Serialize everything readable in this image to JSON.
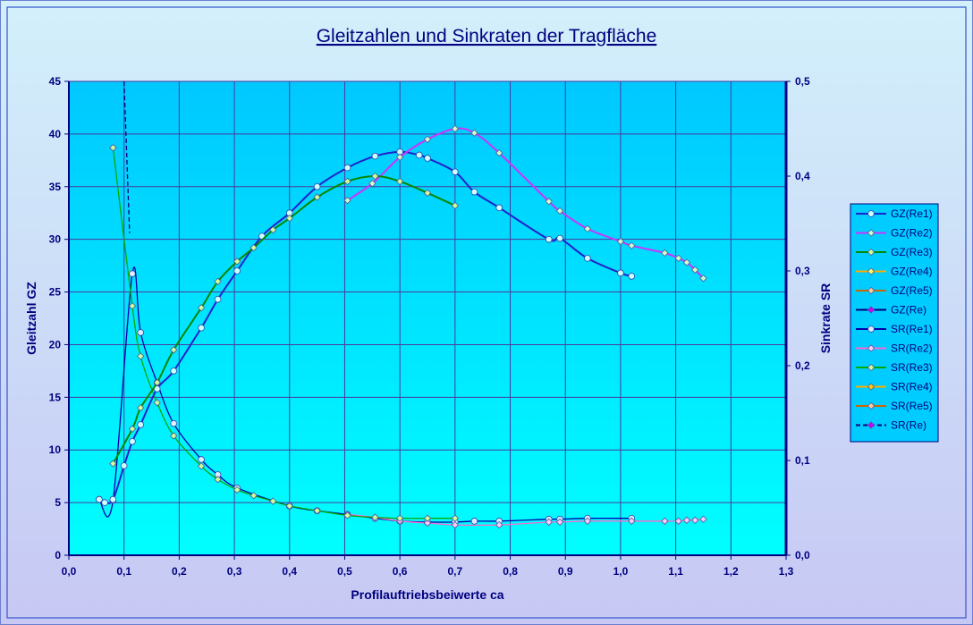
{
  "chart_data": {
    "type": "line",
    "title": "Gleitzahlen und Sinkraten der Tragfläche",
    "xlabel": "Profilauftriebsbeiwerte ca",
    "ylabel": "Gleitzahl GZ",
    "y2label": "Sinkrate SR",
    "xlim": [
      0,
      1.3
    ],
    "ylim": [
      0,
      45
    ],
    "y2lim": [
      0,
      0.5
    ],
    "x_ticks": [
      "0,0",
      "0,1",
      "0,2",
      "0,3",
      "0,4",
      "0,5",
      "0,6",
      "0,7",
      "0,8",
      "0,9",
      "1,0",
      "1,1",
      "1,2",
      "1,3"
    ],
    "y_ticks": [
      "0",
      "5",
      "10",
      "15",
      "20",
      "25",
      "30",
      "35",
      "40",
      "45"
    ],
    "y2_ticks": [
      "0,0",
      "0,1",
      "0,2",
      "0,3",
      "0,4",
      "0,5"
    ],
    "grid": true,
    "legend_position": "right",
    "colors": {
      "background_outer_top": "#d2f0fb",
      "background_outer_bottom": "#c7c8f4",
      "plot_top": "#00ccff",
      "plot_bottom": "#00ffff",
      "axis": "#000080",
      "title": "#000080"
    },
    "series": [
      {
        "name": "GZ(Re1)",
        "axis": "left",
        "color": "#2222cc",
        "marker_fill": "#ccffff",
        "points": [
          [
            0.055,
            5.3
          ],
          [
            0.065,
            5.0
          ],
          [
            0.08,
            5.3
          ],
          [
            0.1,
            8.5
          ],
          [
            0.115,
            10.8
          ],
          [
            0.13,
            12.4
          ],
          [
            0.16,
            15.8
          ],
          [
            0.19,
            17.5
          ],
          [
            0.24,
            21.6
          ],
          [
            0.27,
            24.3
          ],
          [
            0.305,
            27.0
          ],
          [
            0.35,
            30.3
          ],
          [
            0.4,
            32.5
          ],
          [
            0.45,
            35.0
          ],
          [
            0.505,
            36.8
          ],
          [
            0.555,
            37.9
          ],
          [
            0.6,
            38.3
          ],
          [
            0.635,
            38.0
          ],
          [
            0.65,
            37.7
          ],
          [
            0.7,
            36.4
          ],
          [
            0.735,
            34.5
          ],
          [
            0.78,
            33.0
          ],
          [
            0.87,
            30.0
          ],
          [
            0.89,
            30.1
          ],
          [
            0.94,
            28.2
          ],
          [
            1.0,
            26.8
          ],
          [
            1.02,
            26.5
          ]
        ]
      },
      {
        "name": "GZ(Re2)",
        "axis": "left",
        "color": "#cc33ff",
        "marker_fill": "#ccffcc",
        "points": [
          [
            0.505,
            33.7
          ],
          [
            0.55,
            35.3
          ],
          [
            0.6,
            37.8
          ],
          [
            0.65,
            39.5
          ],
          [
            0.7,
            40.5
          ],
          [
            0.735,
            40.1
          ],
          [
            0.78,
            38.2
          ],
          [
            0.87,
            33.6
          ],
          [
            0.89,
            32.7
          ],
          [
            0.94,
            31.0
          ],
          [
            1.0,
            29.8
          ],
          [
            1.02,
            29.4
          ],
          [
            1.08,
            28.7
          ],
          [
            1.105,
            28.2
          ],
          [
            1.12,
            27.8
          ],
          [
            1.135,
            27.1
          ],
          [
            1.15,
            26.3
          ]
        ]
      },
      {
        "name": "GZ(Re3)",
        "axis": "left",
        "color": "#008800",
        "marker_fill": "#ccff99",
        "points": [
          [
            0.08,
            8.7
          ],
          [
            0.115,
            12.0
          ],
          [
            0.13,
            14.0
          ],
          [
            0.16,
            16.4
          ],
          [
            0.19,
            19.5
          ],
          [
            0.24,
            23.5
          ],
          [
            0.27,
            26.0
          ],
          [
            0.305,
            27.9
          ],
          [
            0.335,
            29.2
          ],
          [
            0.37,
            30.9
          ],
          [
            0.4,
            32.0
          ],
          [
            0.45,
            34.0
          ],
          [
            0.505,
            35.5
          ],
          [
            0.555,
            36.0
          ],
          [
            0.6,
            35.5
          ],
          [
            0.65,
            34.4
          ],
          [
            0.7,
            33.2
          ]
        ]
      },
      {
        "name": "GZ(Re4)",
        "axis": "left",
        "color": "#ffaa00",
        "marker_fill": "#ffff66",
        "points": []
      },
      {
        "name": "GZ(Re5)",
        "axis": "left",
        "color": "#cc6600",
        "marker_fill": "#ffcc99",
        "points": []
      },
      {
        "name": "GZ(Re)",
        "axis": "left",
        "color": "#000080",
        "marker_fill": "#cc00ff",
        "points": []
      },
      {
        "name": "SR(Re1)",
        "axis": "right",
        "color": "#0000aa",
        "marker_fill": "#ddeeff",
        "points": [
          [
            0.055,
            0.059
          ],
          [
            0.08,
            0.058
          ],
          [
            0.115,
            0.297
          ],
          [
            0.13,
            0.235
          ],
          [
            0.16,
            0.182
          ],
          [
            0.19,
            0.139
          ],
          [
            0.24,
            0.101
          ],
          [
            0.27,
            0.085
          ],
          [
            0.305,
            0.071
          ],
          [
            0.4,
            0.052
          ],
          [
            0.45,
            0.047
          ],
          [
            0.505,
            0.043
          ],
          [
            0.555,
            0.039
          ],
          [
            0.6,
            0.036
          ],
          [
            0.65,
            0.035
          ],
          [
            0.7,
            0.035
          ],
          [
            0.735,
            0.036
          ],
          [
            0.78,
            0.036
          ],
          [
            0.87,
            0.038
          ],
          [
            0.89,
            0.038
          ],
          [
            0.94,
            0.039
          ],
          [
            1.02,
            0.039
          ]
        ]
      },
      {
        "name": "SR(Re2)",
        "axis": "right",
        "color": "#ff66cc",
        "marker_fill": "#ffccff",
        "points": [
          [
            0.505,
            0.043
          ],
          [
            0.555,
            0.04
          ],
          [
            0.6,
            0.036
          ],
          [
            0.65,
            0.034
          ],
          [
            0.7,
            0.032
          ],
          [
            0.78,
            0.032
          ],
          [
            0.87,
            0.035
          ],
          [
            0.89,
            0.035
          ],
          [
            0.94,
            0.036
          ],
          [
            1.02,
            0.036
          ],
          [
            1.08,
            0.036
          ],
          [
            1.105,
            0.036
          ],
          [
            1.12,
            0.037
          ],
          [
            1.135,
            0.037
          ],
          [
            1.15,
            0.038
          ]
        ]
      },
      {
        "name": "SR(Re3)",
        "axis": "right",
        "color": "#00aa00",
        "marker_fill": "#ccff99",
        "points": [
          [
            0.08,
            0.43
          ],
          [
            0.115,
            0.263
          ],
          [
            0.13,
            0.21
          ],
          [
            0.16,
            0.161
          ],
          [
            0.19,
            0.126
          ],
          [
            0.24,
            0.094
          ],
          [
            0.27,
            0.08
          ],
          [
            0.305,
            0.069
          ],
          [
            0.335,
            0.063
          ],
          [
            0.37,
            0.057
          ],
          [
            0.4,
            0.052
          ],
          [
            0.45,
            0.047
          ],
          [
            0.505,
            0.042
          ],
          [
            0.555,
            0.04
          ],
          [
            0.6,
            0.039
          ],
          [
            0.65,
            0.039
          ],
          [
            0.7,
            0.039
          ]
        ]
      },
      {
        "name": "SR(Re4)",
        "axis": "right",
        "color": "#ffaa00",
        "marker_fill": "#ffcc00",
        "points": []
      },
      {
        "name": "SR(Re5)",
        "axis": "right",
        "color": "#cc6600",
        "marker_fill": "#ffcc99",
        "points": []
      },
      {
        "name": "SR(Re)",
        "axis": "right",
        "color": "#000080",
        "marker_fill": "#cc00ff",
        "dashed": true,
        "points": [
          [
            0.1,
            0.5
          ],
          [
            0.11,
            0.34
          ]
        ]
      }
    ]
  }
}
